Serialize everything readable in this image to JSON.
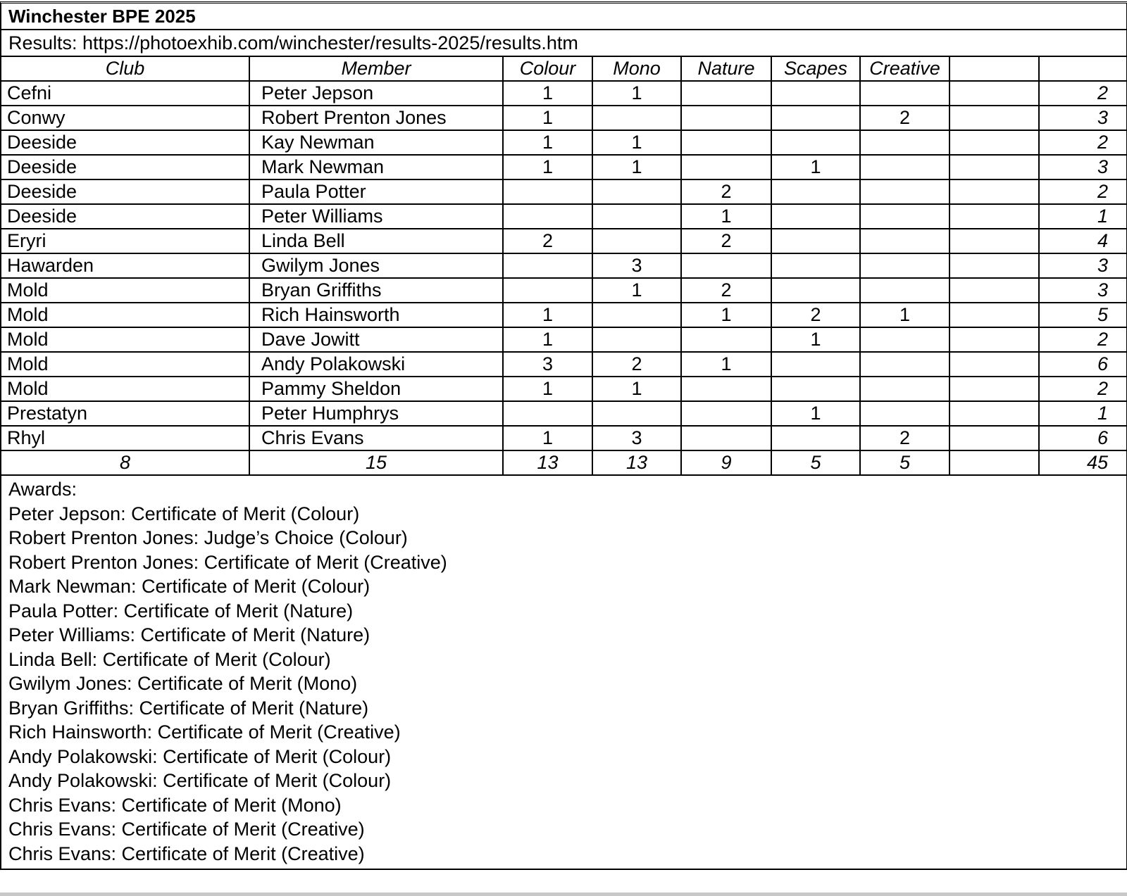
{
  "title": "Winchester BPE 2025",
  "results_line": "Results: https://photoexhib.com/winchester/results-2025/results.htm",
  "columns": [
    "Club",
    "Member",
    "Colour",
    "Mono",
    "Nature",
    "Scapes",
    "Creative",
    "",
    ""
  ],
  "rows": [
    [
      "Cefni",
      "Peter Jepson",
      "1",
      "1",
      "",
      "",
      "",
      "",
      "2"
    ],
    [
      "Conwy",
      "Robert Prenton Jones",
      "1",
      "",
      "",
      "",
      "2",
      "",
      "3"
    ],
    [
      "Deeside",
      "Kay Newman",
      "1",
      "1",
      "",
      "",
      "",
      "",
      "2"
    ],
    [
      "Deeside",
      "Mark Newman",
      "1",
      "1",
      "",
      "1",
      "",
      "",
      "3"
    ],
    [
      "Deeside",
      "Paula Potter",
      "",
      "",
      "2",
      "",
      "",
      "",
      "2"
    ],
    [
      "Deeside",
      "Peter Williams",
      "",
      "",
      "1",
      "",
      "",
      "",
      "1"
    ],
    [
      "Eryri",
      "Linda Bell",
      "2",
      "",
      "2",
      "",
      "",
      "",
      "4"
    ],
    [
      "Hawarden",
      "Gwilym Jones",
      "",
      "3",
      "",
      "",
      "",
      "",
      "3"
    ],
    [
      "Mold",
      "Bryan Griffiths",
      "",
      "1",
      "2",
      "",
      "",
      "",
      "3"
    ],
    [
      "Mold",
      "Rich Hainsworth",
      "1",
      "",
      "1",
      "2",
      "1",
      "",
      "5"
    ],
    [
      "Mold",
      "Dave Jowitt",
      "1",
      "",
      "",
      "1",
      "",
      "",
      "2"
    ],
    [
      "Mold",
      "Andy Polakowski",
      "3",
      "2",
      "1",
      "",
      "",
      "",
      "6"
    ],
    [
      "Mold",
      "Pammy Sheldon",
      "1",
      "1",
      "",
      "",
      "",
      "",
      "2"
    ],
    [
      "Prestatyn",
      "Peter Humphrys",
      "",
      "",
      "",
      "1",
      "",
      "",
      "1"
    ],
    [
      "Rhyl",
      "Chris Evans",
      "1",
      "3",
      "",
      "",
      "2",
      "",
      "6"
    ]
  ],
  "totals": [
    "8",
    "15",
    "13",
    "13",
    "9",
    "5",
    "5",
    "",
    "45"
  ],
  "awards_label": "Awards:",
  "awards": [
    "Peter Jepson: Certificate of Merit (Colour)",
    "Robert Prenton Jones: Judge’s Choice (Colour)",
    "Robert Prenton Jones: Certificate of Merit (Creative)",
    "Mark Newman: Certificate of Merit (Colour)",
    "Paula Potter: Certificate of Merit (Nature)",
    "Peter Williams: Certificate of Merit (Nature)",
    "Linda Bell: Certificate of Merit (Colour)",
    "Gwilym Jones: Certificate of Merit (Mono)",
    "Bryan Griffiths: Certificate of Merit (Nature)",
    "Rich Hainsworth: Certificate of Merit (Creative)",
    "Andy Polakowski: Certificate of Merit (Colour)",
    "Andy Polakowski: Certificate of Merit (Colour)",
    "Chris Evans: Certificate of Merit (Mono)",
    "Chris Evans: Certificate of Merit (Creative)",
    "Chris Evans: Certificate of Merit (Creative)"
  ]
}
